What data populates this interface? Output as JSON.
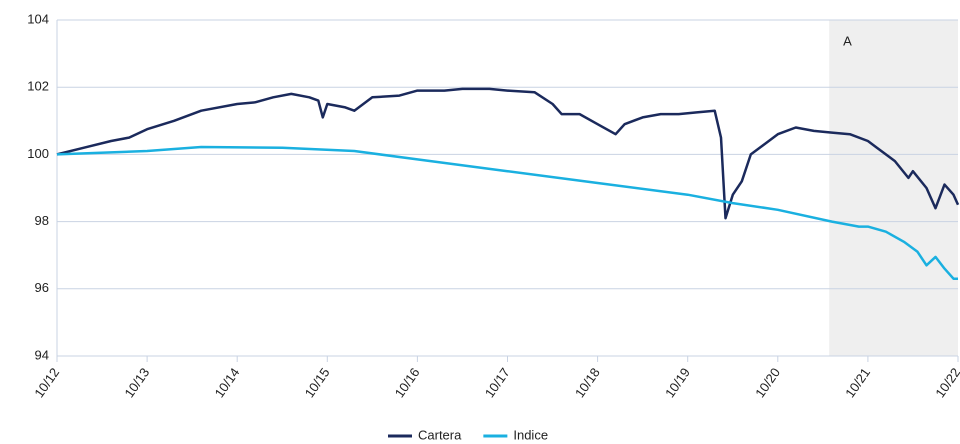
{
  "chart_data": {
    "type": "line",
    "series": [
      {
        "name": "Cartera",
        "color": "#1b2a5c",
        "x": [
          0,
          0.3,
          0.6,
          0.8,
          1.0,
          1.3,
          1.6,
          2.0,
          2.2,
          2.4,
          2.6,
          2.8,
          2.9,
          2.95,
          3.0,
          3.2,
          3.3,
          3.5,
          3.8,
          4.0,
          4.3,
          4.5,
          4.8,
          5.0,
          5.3,
          5.5,
          5.6,
          5.8,
          6.0,
          6.2,
          6.3,
          6.5,
          6.7,
          6.9,
          7.1,
          7.3,
          7.37,
          7.42,
          7.5,
          7.6,
          7.7,
          7.9,
          8.0,
          8.2,
          8.4,
          8.6,
          8.8,
          9.0,
          9.1,
          9.3,
          9.45,
          9.5,
          9.65,
          9.75,
          9.85,
          9.95,
          10.0
        ],
        "values": [
          100.0,
          100.2,
          100.4,
          100.5,
          100.75,
          101.0,
          101.3,
          101.5,
          101.55,
          101.7,
          101.8,
          101.7,
          101.6,
          101.1,
          101.5,
          101.4,
          101.3,
          101.7,
          101.75,
          101.9,
          101.9,
          101.95,
          101.95,
          101.9,
          101.85,
          101.5,
          101.2,
          101.2,
          100.9,
          100.6,
          100.9,
          101.1,
          101.2,
          101.2,
          101.25,
          101.3,
          100.5,
          98.1,
          98.8,
          99.2,
          100.0,
          100.4,
          100.6,
          100.8,
          100.7,
          100.65,
          100.6,
          100.4,
          100.2,
          99.8,
          99.3,
          99.5,
          99.0,
          98.4,
          99.1,
          98.8,
          98.5
        ]
      },
      {
        "name": "Indice",
        "color": "#1ab0e0",
        "x": [
          0,
          1,
          1.6,
          2.5,
          3.3,
          4,
          5,
          6,
          7,
          7.5,
          8,
          8.6,
          8.9,
          9.0,
          9.2,
          9.4,
          9.55,
          9.65,
          9.75,
          9.85,
          9.95,
          10
        ],
        "values": [
          100.0,
          100.1,
          100.22,
          100.2,
          100.1,
          99.85,
          99.5,
          99.15,
          98.8,
          98.55,
          98.35,
          98.0,
          97.85,
          97.85,
          97.7,
          97.4,
          97.1,
          96.7,
          96.95,
          96.6,
          96.3,
          96.3
        ]
      }
    ],
    "xlim": [
      0,
      10
    ],
    "xticks": [
      {
        "value": 0,
        "label": "10/12"
      },
      {
        "value": 1,
        "label": "10/13"
      },
      {
        "value": 2,
        "label": "10/14"
      },
      {
        "value": 3,
        "label": "10/15"
      },
      {
        "value": 4,
        "label": "10/16"
      },
      {
        "value": 5,
        "label": "10/17"
      },
      {
        "value": 6,
        "label": "10/18"
      },
      {
        "value": 7,
        "label": "10/19"
      },
      {
        "value": 8,
        "label": "10/20"
      },
      {
        "value": 9,
        "label": "10/21"
      },
      {
        "value": 10,
        "label": "10/22"
      }
    ],
    "ylim": [
      94,
      104
    ],
    "yticks": [
      94,
      96,
      98,
      100,
      102,
      104
    ],
    "grid": true,
    "shaded": {
      "from": 8.57,
      "to": 10,
      "label": "A",
      "color": "#efefef"
    },
    "legend": "bottom"
  }
}
